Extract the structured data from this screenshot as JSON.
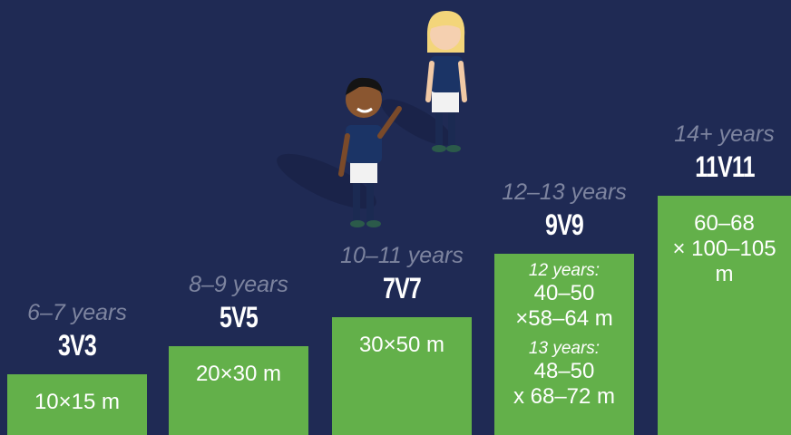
{
  "steps": [
    {
      "age": "6–7 years",
      "format": "3V3",
      "groups": [
        {
          "lines": [
            "10×15 m"
          ]
        }
      ]
    },
    {
      "age": "8–9 years",
      "format": "5V5",
      "groups": [
        {
          "lines": [
            "20×30 m"
          ]
        }
      ]
    },
    {
      "age": "10–11 years",
      "format": "7V7",
      "groups": [
        {
          "lines": [
            "30×50 m"
          ]
        }
      ]
    },
    {
      "age": "12–13 years",
      "format": "9V9",
      "groups": [
        {
          "label": "12 years:",
          "lines": [
            "40–50",
            "×58–64 m"
          ]
        },
        {
          "label": "13 years:",
          "lines": [
            "48–50",
            "x 68–72 m"
          ]
        }
      ]
    },
    {
      "age": "14+ years",
      "format": "11V11",
      "groups": [
        {
          "lines": [
            "60–68",
            "× 100–105",
            "m"
          ]
        }
      ]
    }
  ]
}
